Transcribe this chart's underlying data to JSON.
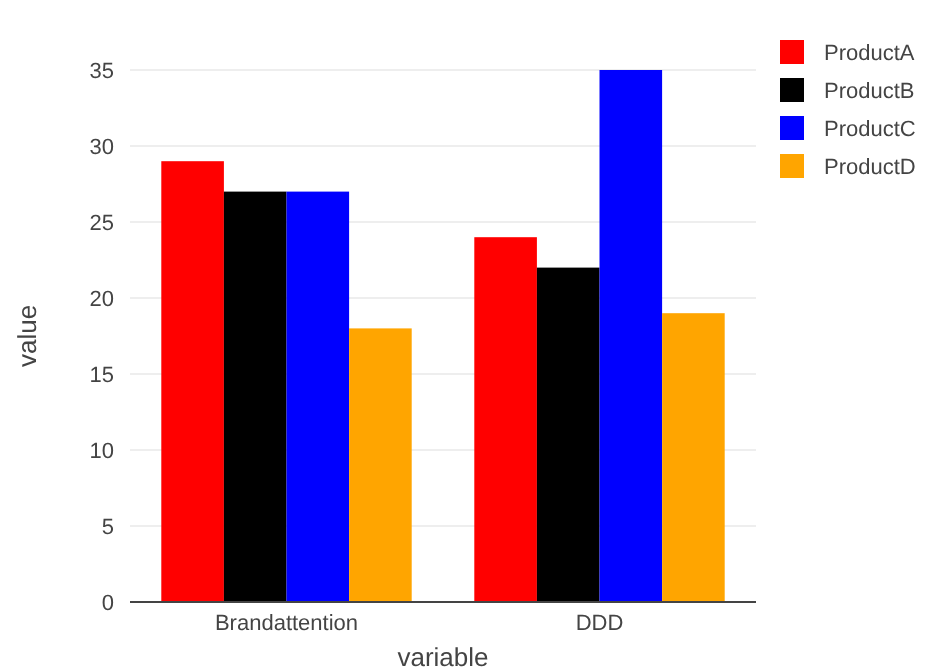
{
  "chart_data": {
    "type": "bar",
    "xlabel": "variable",
    "ylabel": "value",
    "categories": [
      "Brandattention",
      "DDD"
    ],
    "series": [
      {
        "name": "ProductA",
        "color": "#ff0000",
        "values": [
          29,
          24
        ]
      },
      {
        "name": "ProductB",
        "color": "#000000",
        "values": [
          27,
          22
        ]
      },
      {
        "name": "ProductC",
        "color": "#0000ff",
        "values": [
          27,
          35
        ]
      },
      {
        "name": "ProductD",
        "color": "#ffa500",
        "values": [
          18,
          19
        ]
      }
    ],
    "ylim": [
      0,
      35
    ],
    "yticks": [
      0,
      5,
      10,
      15,
      20,
      25,
      30,
      35
    ],
    "grid": "y",
    "legend": "top right"
  }
}
